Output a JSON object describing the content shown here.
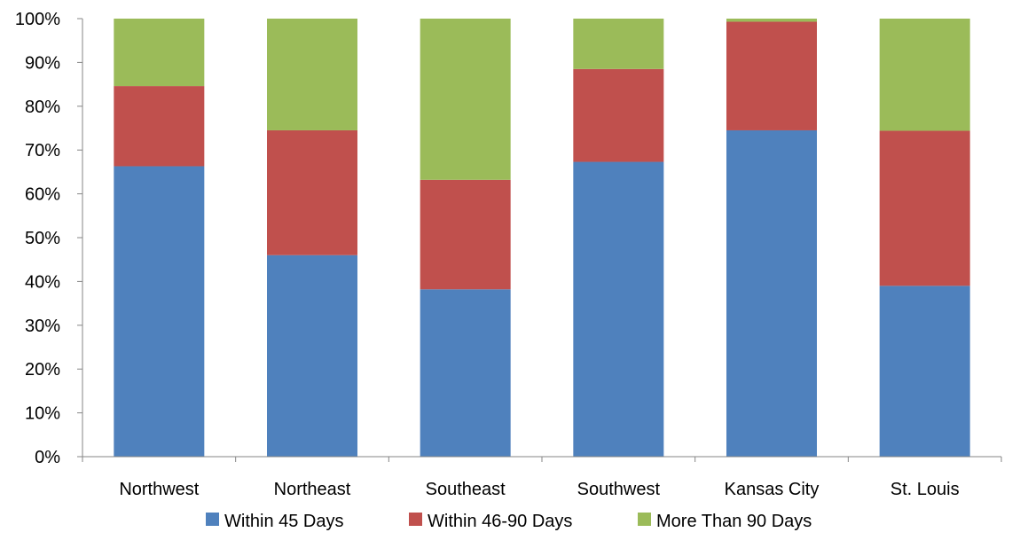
{
  "chart_data": {
    "type": "bar",
    "stacked": true,
    "categories": [
      "Northwest",
      "Northeast",
      "Southeast",
      "Southwest",
      "Kansas City",
      "St. Louis"
    ],
    "series": [
      {
        "name": "Within 45 Days",
        "color": "#4F81BD",
        "values": [
          66.3,
          46.0,
          38.2,
          67.3,
          74.5,
          39.0
        ]
      },
      {
        "name": "Within 46-90 Days",
        "color": "#C0504D",
        "values": [
          18.3,
          28.5,
          25.0,
          21.2,
          24.8,
          35.4
        ]
      },
      {
        "name": "More Than 90 Days",
        "color": "#9BBB59",
        "values": [
          15.4,
          25.5,
          36.8,
          11.5,
          0.7,
          25.6
        ]
      }
    ],
    "ylim": [
      0,
      100
    ],
    "yticks": [
      "0%",
      "10%",
      "20%",
      "30%",
      "40%",
      "50%",
      "60%",
      "70%",
      "80%",
      "90%",
      "100%"
    ],
    "grid": false,
    "legend_position": "bottom",
    "title": "",
    "xlabel": "",
    "ylabel": ""
  }
}
